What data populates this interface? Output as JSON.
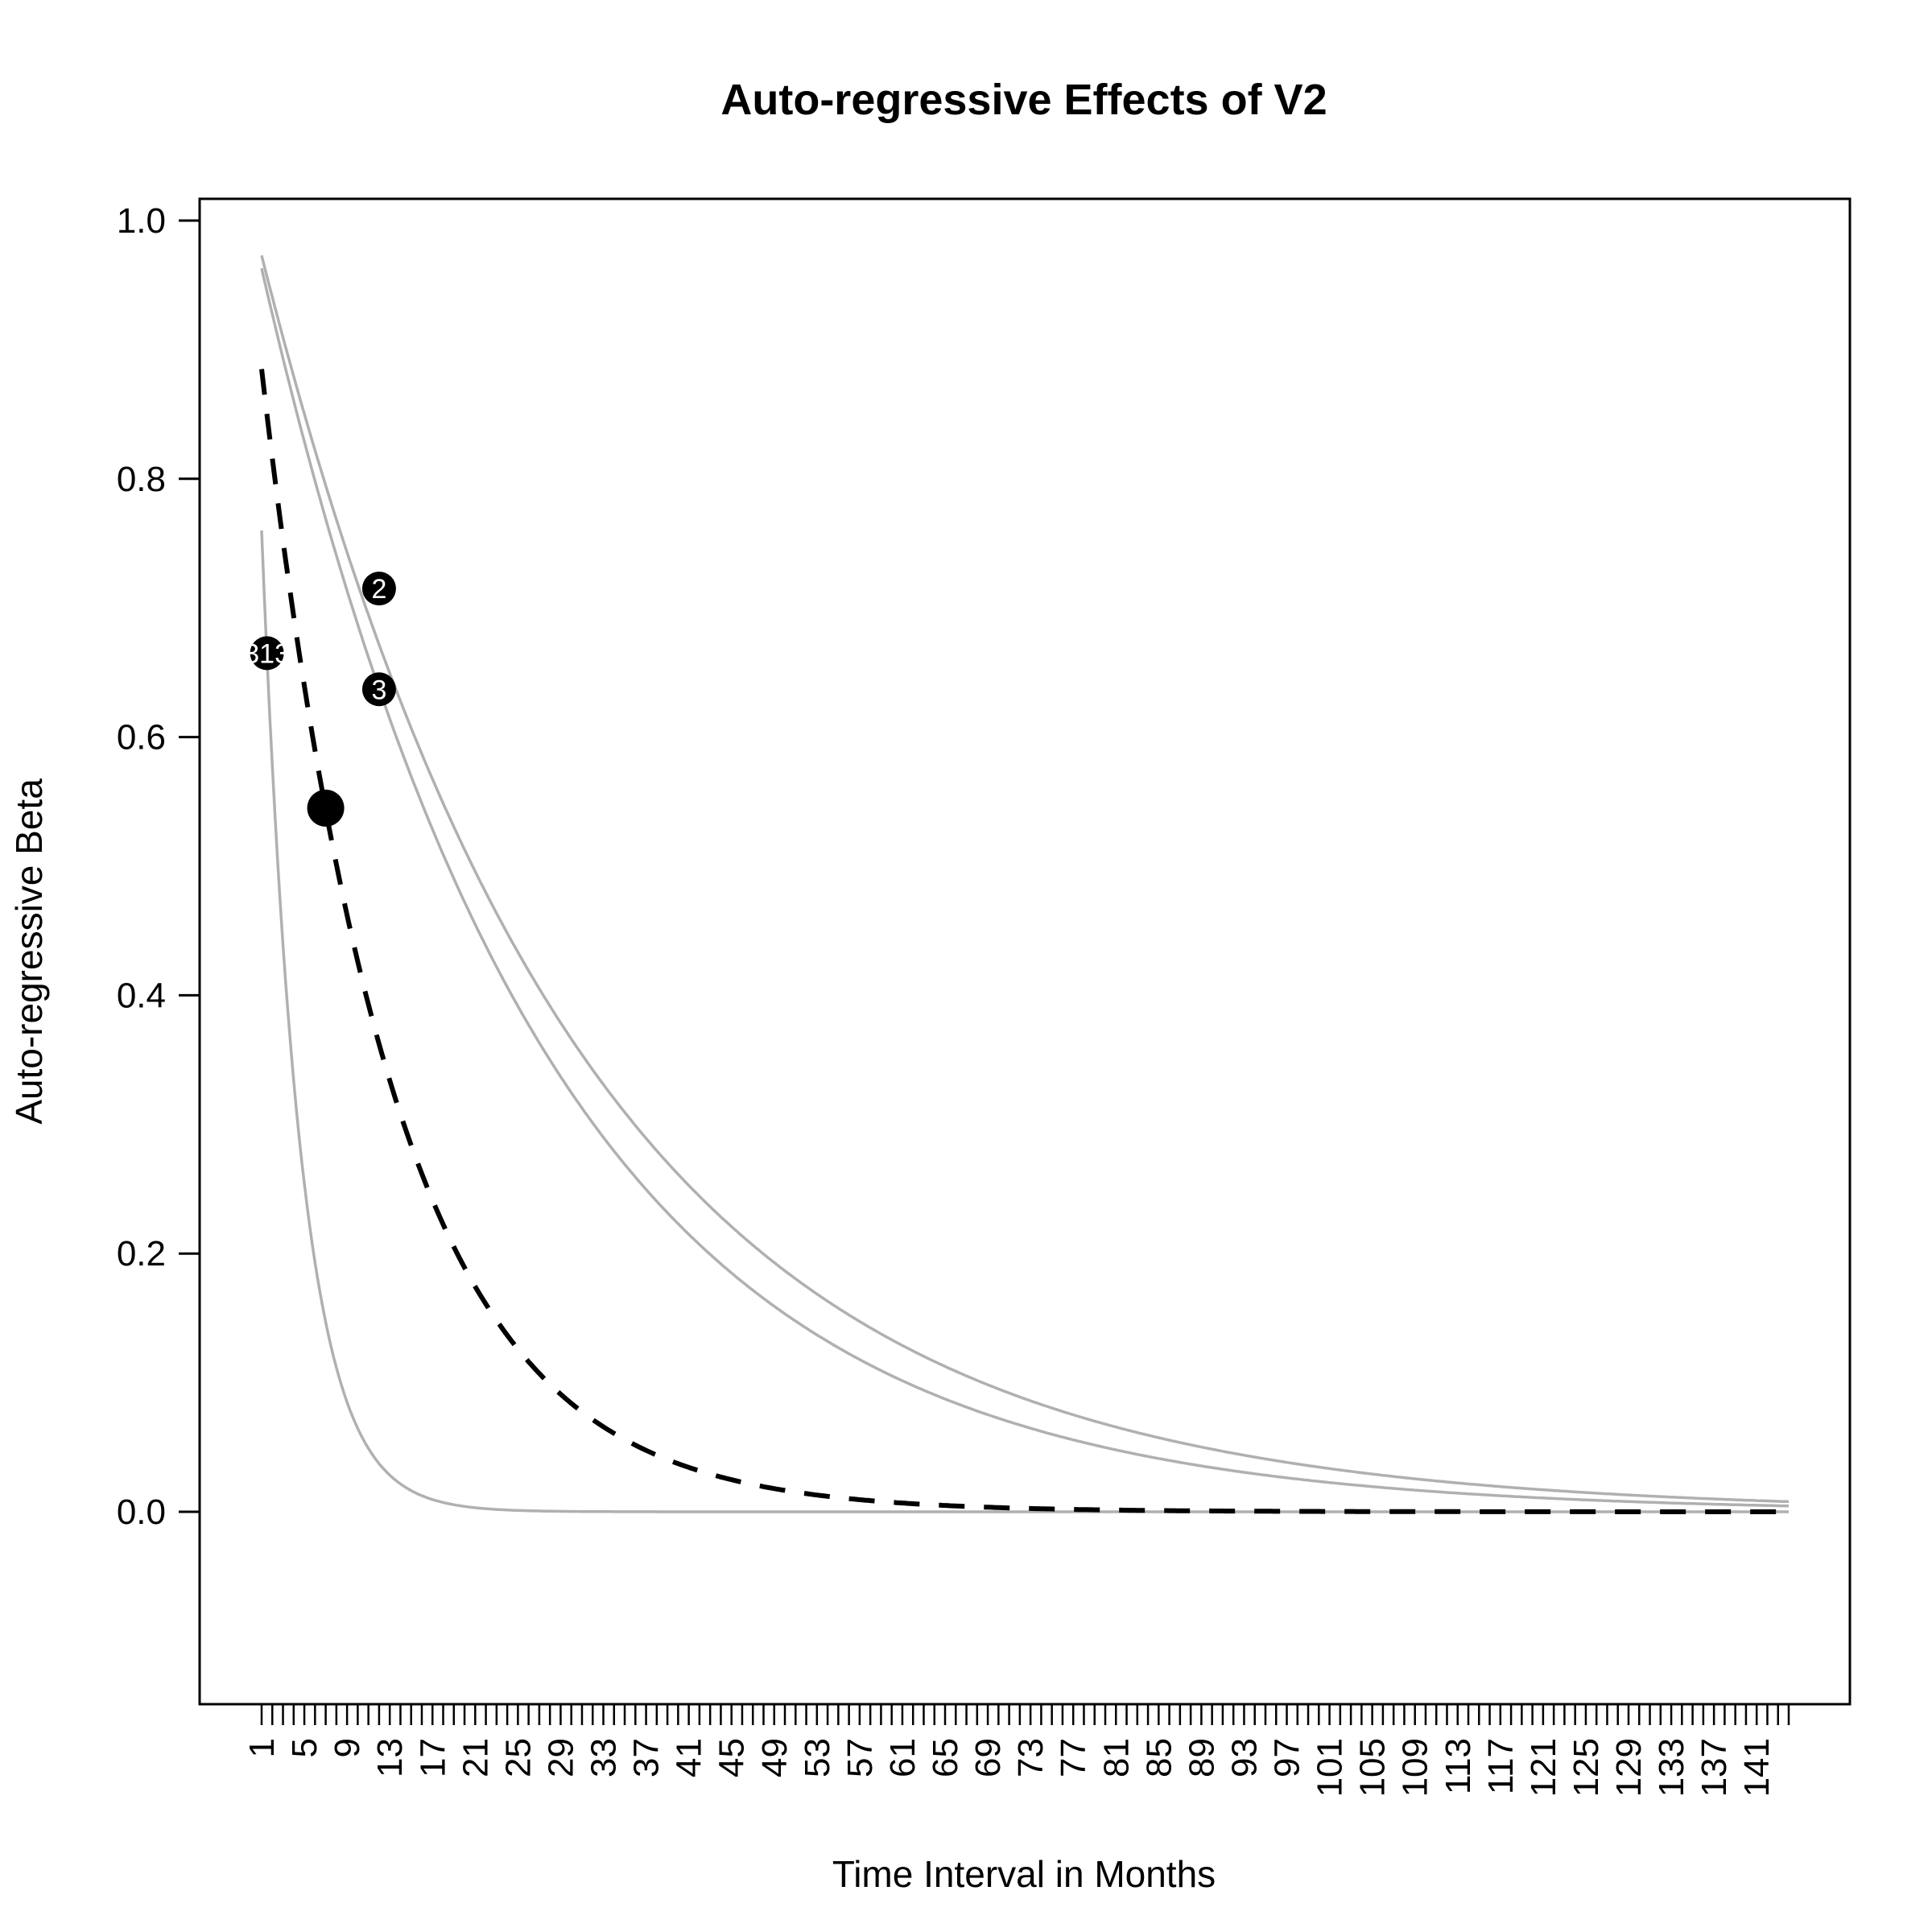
{
  "chart_data": {
    "type": "line",
    "title": "Auto-regressive Effects of V2",
    "xlabel": "Time Interval in Months",
    "ylabel": "Auto-regressive Beta",
    "xlim": [
      1,
      144
    ],
    "ylim": [
      -0.15,
      1.02
    ],
    "y_ticks": [
      0.0,
      0.2,
      0.4,
      0.6,
      0.8,
      1.0
    ],
    "y_tick_labels": [
      "0.0",
      "0.2",
      "0.4",
      "0.6",
      "0.8",
      "1.0"
    ],
    "x_minor_ticks": {
      "start": 1,
      "end": 144,
      "step": 1
    },
    "x_tick_labels": [
      "1",
      "5",
      "9",
      "13",
      "17",
      "21",
      "25",
      "29",
      "33",
      "37",
      "41",
      "45",
      "49",
      "53",
      "57",
      "61",
      "65",
      "69",
      "73",
      "77",
      "81",
      "85",
      "89",
      "93",
      "97",
      "101",
      "105",
      "109",
      "113",
      "117",
      "121",
      "125",
      "129",
      "133",
      "137",
      "141"
    ],
    "x_tick_label_values": [
      1,
      5,
      9,
      13,
      17,
      21,
      25,
      29,
      33,
      37,
      41,
      45,
      49,
      53,
      57,
      61,
      65,
      69,
      73,
      77,
      81,
      85,
      89,
      93,
      97,
      101,
      105,
      109,
      113,
      117,
      121,
      125,
      129,
      133,
      137,
      141
    ],
    "grid": false,
    "legend": "none",
    "series": [
      {
        "style": "solid",
        "color": "#b0b0b0",
        "model": "exp",
        "y1": 0.973,
        "rate": 0.0337
      },
      {
        "style": "solid",
        "color": "#b0b0b0",
        "model": "exp",
        "y1": 0.963,
        "rate": 0.0375
      },
      {
        "style": "solid",
        "color": "#b0b0b0",
        "model": "exp",
        "y1": 0.76,
        "rate": 0.274
      },
      {
        "style": "dashed",
        "color": "#000000",
        "model": "exp",
        "y1": 0.885,
        "rate": 0.0812
      }
    ],
    "points": [
      {
        "x": 1.5,
        "y": 0.665,
        "label": "313",
        "size": "small"
      },
      {
        "x": 12,
        "y": 0.715,
        "label": "2",
        "size": "small"
      },
      {
        "x": 12,
        "y": 0.637,
        "label": "3",
        "size": "small"
      },
      {
        "x": 7,
        "y": 0.545,
        "label": "",
        "size": "large"
      }
    ],
    "colors": {
      "axis": "#000000",
      "gray_series": "#b0b0b0",
      "dashed_series": "#000000",
      "marker": "#000000",
      "marker_text": "#ffffff"
    }
  }
}
